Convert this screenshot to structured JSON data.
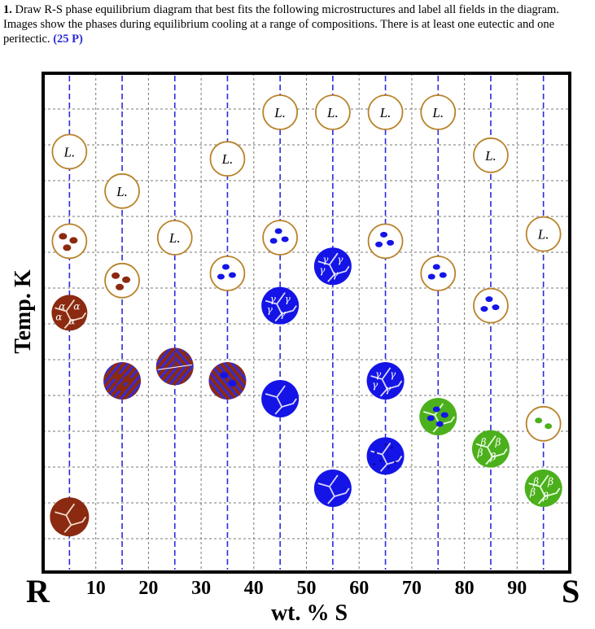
{
  "question": {
    "number": "1.",
    "text_line1": "Draw R-S phase equilibrium diagram that best fits the following microstructures and label all fields in the diagram.",
    "text_line2": "Images show the phases during equilibrium cooling at a range of compositions. There is at least one eutectic and one peritectic.",
    "points": "(25 P)"
  },
  "axes": {
    "y_label": "Temp. K",
    "x_label": "wt. % S",
    "left_end": "R",
    "right_end": "S",
    "x_ticks": [
      "10",
      "20",
      "30",
      "40",
      "50",
      "60",
      "70",
      "80",
      "90"
    ],
    "x_tick_values": [
      10,
      20,
      30,
      40,
      50,
      60,
      70,
      80,
      90
    ],
    "composition_lines_wt_pct": [
      5,
      15,
      25,
      35,
      45,
      55,
      65,
      75,
      85,
      95
    ]
  },
  "colors": {
    "liquid_ring": "#b8822a",
    "alpha": "#8b2a10",
    "gamma": "#1414e6",
    "beta": "#4cb01c",
    "dashed_line": "#2a2ae0",
    "lamellar_stripe": "#3a2ad0"
  },
  "microstructures": [
    {
      "comp": 5,
      "level": 1.6,
      "type": "liquid",
      "label": "L."
    },
    {
      "comp": 5,
      "level": 4.1,
      "type": "liquid_alpha"
    },
    {
      "comp": 5,
      "level": 6.1,
      "type": "alpha_grains",
      "label": "α"
    },
    {
      "comp": 5,
      "level": 11.8,
      "type": "alpha_solid"
    },
    {
      "comp": 15,
      "level": 2.7,
      "type": "liquid",
      "label": "L."
    },
    {
      "comp": 15,
      "level": 5.2,
      "type": "liquid_alpha"
    },
    {
      "comp": 15,
      "level": 8.0,
      "type": "eutectic_alpha_primary"
    },
    {
      "comp": 25,
      "level": 4.0,
      "type": "liquid",
      "label": "L."
    },
    {
      "comp": 25,
      "level": 7.6,
      "type": "eutectic"
    },
    {
      "comp": 35,
      "level": 1.8,
      "type": "liquid",
      "label": "L."
    },
    {
      "comp": 35,
      "level": 5.0,
      "type": "liquid_gamma"
    },
    {
      "comp": 35,
      "level": 8.0,
      "type": "eutectic_gamma_primary"
    },
    {
      "comp": 45,
      "level": 0.5,
      "type": "liquid",
      "label": "L."
    },
    {
      "comp": 45,
      "level": 4.0,
      "type": "liquid_gamma"
    },
    {
      "comp": 45,
      "level": 5.9,
      "type": "gamma_grains",
      "label": "γ"
    },
    {
      "comp": 45,
      "level": 8.5,
      "type": "gamma_solid"
    },
    {
      "comp": 55,
      "level": 0.5,
      "type": "liquid",
      "label": "L."
    },
    {
      "comp": 55,
      "level": 4.8,
      "type": "gamma_grains",
      "label": "γ"
    },
    {
      "comp": 55,
      "level": 11.0,
      "type": "gamma_solid"
    },
    {
      "comp": 65,
      "level": 0.5,
      "type": "liquid",
      "label": "L."
    },
    {
      "comp": 65,
      "level": 4.1,
      "type": "liquid_gamma"
    },
    {
      "comp": 65,
      "level": 8.0,
      "type": "gamma_grains",
      "label": "γ"
    },
    {
      "comp": 65,
      "level": 10.1,
      "type": "gamma_precip"
    },
    {
      "comp": 75,
      "level": 0.5,
      "type": "liquid",
      "label": "L."
    },
    {
      "comp": 75,
      "level": 5.0,
      "type": "liquid_gamma"
    },
    {
      "comp": 75,
      "level": 9.0,
      "type": "beta_gamma"
    },
    {
      "comp": 85,
      "level": 1.7,
      "type": "liquid",
      "label": "L."
    },
    {
      "comp": 85,
      "level": 5.9,
      "type": "liquid_gamma"
    },
    {
      "comp": 85,
      "level": 9.9,
      "type": "beta_grains",
      "label": "β"
    },
    {
      "comp": 95,
      "level": 3.9,
      "type": "liquid",
      "label": "L."
    },
    {
      "comp": 95,
      "level": 9.2,
      "type": "liquid_beta"
    },
    {
      "comp": 95,
      "level": 11.0,
      "type": "beta_grains",
      "label": "β"
    }
  ]
}
